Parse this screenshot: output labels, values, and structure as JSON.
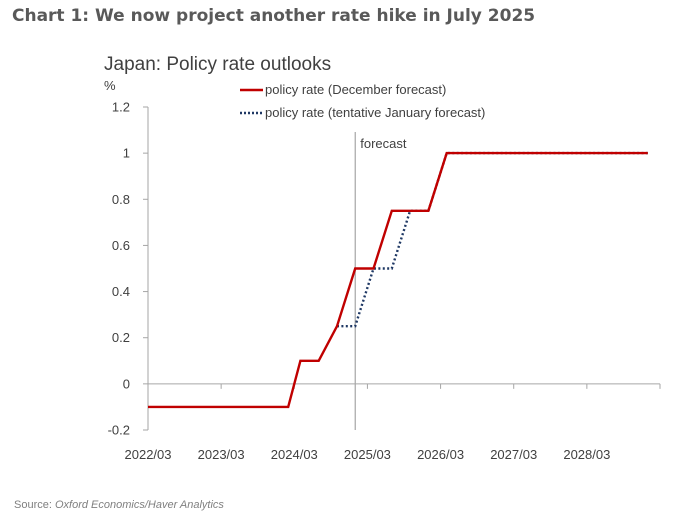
{
  "heading": "Chart 1: We now project another rate hike in July 2025",
  "source_prefix": "Source: ",
  "source_text": "Oxford Economics/Haver Analytics",
  "colors": {
    "december": "#c00000",
    "january": "#1f3864",
    "axis": "#a6a6a6",
    "text": "#404040"
  },
  "chart_data": {
    "type": "line",
    "title": "Japan: Policy rate outlooks",
    "ylabel": "%",
    "ylim": [
      -0.2,
      1.2
    ],
    "yticks": [
      -0.2,
      0,
      0.2,
      0.4,
      0.6,
      0.8,
      1,
      1.2
    ],
    "ytick_labels": [
      "-0.2",
      "0",
      "0.2",
      "0.4",
      "0.6",
      "0.8",
      "1",
      "1.2"
    ],
    "xlim": [
      "2022/03",
      "2029/03"
    ],
    "xticks": [
      "2022/03",
      "2023/03",
      "2024/03",
      "2025/03",
      "2026/03",
      "2027/03",
      "2028/03"
    ],
    "legend_position": "top",
    "annotation": {
      "label": "forecast",
      "x": "2025/01"
    },
    "series": [
      {
        "name": "policy rate (December forecast)",
        "style": "solid",
        "points": [
          [
            "2022/03",
            -0.1
          ],
          [
            "2024/02",
            -0.1
          ],
          [
            "2024/04",
            0.1
          ],
          [
            "2024/07",
            0.1
          ],
          [
            "2024/10",
            0.25
          ],
          [
            "2025/01",
            0.5
          ],
          [
            "2025/04",
            0.5
          ],
          [
            "2025/07",
            0.75
          ],
          [
            "2026/01",
            0.75
          ],
          [
            "2026/04",
            1.0
          ],
          [
            "2029/01",
            1.0
          ]
        ]
      },
      {
        "name": "policy rate (tentative January forecast)",
        "style": "dotted",
        "points": [
          [
            "2024/10",
            0.25
          ],
          [
            "2025/01",
            0.25
          ],
          [
            "2025/04",
            0.5
          ],
          [
            "2025/07",
            0.5
          ],
          [
            "2025/10",
            0.75
          ],
          [
            "2026/01",
            0.75
          ],
          [
            "2026/04",
            1.0
          ],
          [
            "2029/01",
            1.0
          ]
        ]
      }
    ]
  }
}
